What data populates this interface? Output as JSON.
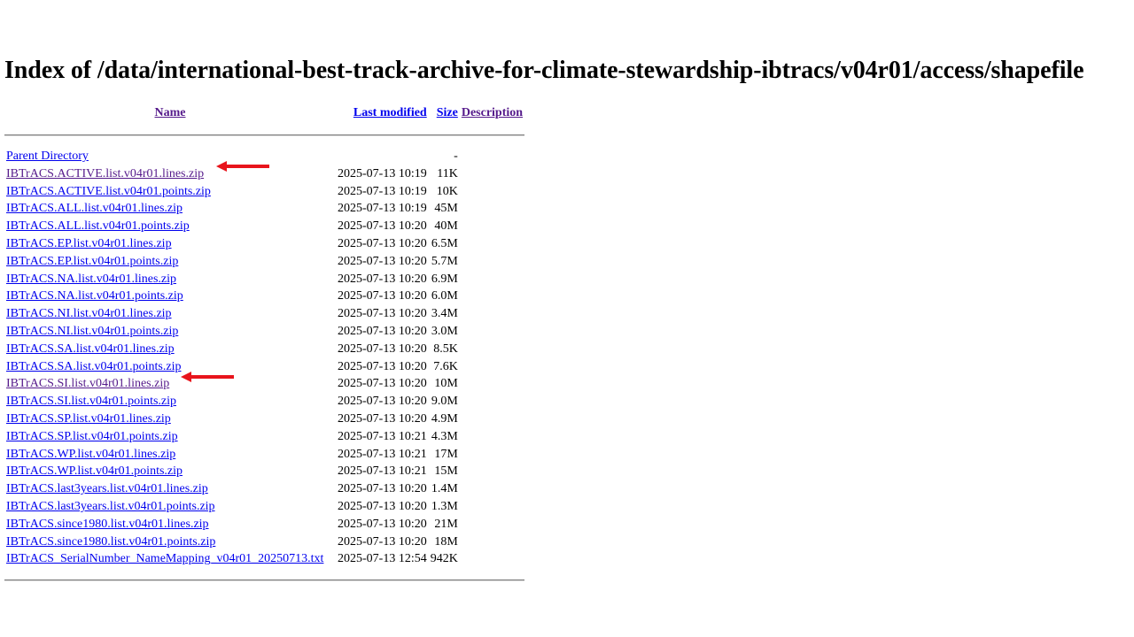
{
  "page_title": "Index of /data/international-best-track-archive-for-climate-stewardship-ibtracs/v04r01/access/shapefile",
  "columns": {
    "name": "Name",
    "last_modified": "Last modified",
    "size": "Size",
    "description": "Description"
  },
  "parent": {
    "label": "Parent Directory",
    "size": "-"
  },
  "files": [
    {
      "name": "IBTrACS.ACTIVE.list.v04r01.lines.zip",
      "modified": "2025-07-13 10:19",
      "size": "11K"
    },
    {
      "name": "IBTrACS.ACTIVE.list.v04r01.points.zip",
      "modified": "2025-07-13 10:19",
      "size": "10K"
    },
    {
      "name": "IBTrACS.ALL.list.v04r01.lines.zip",
      "modified": "2025-07-13 10:19",
      "size": "45M"
    },
    {
      "name": "IBTrACS.ALL.list.v04r01.points.zip",
      "modified": "2025-07-13 10:20",
      "size": "40M"
    },
    {
      "name": "IBTrACS.EP.list.v04r01.lines.zip",
      "modified": "2025-07-13 10:20",
      "size": "6.5M"
    },
    {
      "name": "IBTrACS.EP.list.v04r01.points.zip",
      "modified": "2025-07-13 10:20",
      "size": "5.7M"
    },
    {
      "name": "IBTrACS.NA.list.v04r01.lines.zip",
      "modified": "2025-07-13 10:20",
      "size": "6.9M"
    },
    {
      "name": "IBTrACS.NA.list.v04r01.points.zip",
      "modified": "2025-07-13 10:20",
      "size": "6.0M"
    },
    {
      "name": "IBTrACS.NI.list.v04r01.lines.zip",
      "modified": "2025-07-13 10:20",
      "size": "3.4M"
    },
    {
      "name": "IBTrACS.NI.list.v04r01.points.zip",
      "modified": "2025-07-13 10:20",
      "size": "3.0M"
    },
    {
      "name": "IBTrACS.SA.list.v04r01.lines.zip",
      "modified": "2025-07-13 10:20",
      "size": "8.5K"
    },
    {
      "name": "IBTrACS.SA.list.v04r01.points.zip",
      "modified": "2025-07-13 10:20",
      "size": "7.6K"
    },
    {
      "name": "IBTrACS.SI.list.v04r01.lines.zip",
      "modified": "2025-07-13 10:20",
      "size": "10M"
    },
    {
      "name": "IBTrACS.SI.list.v04r01.points.zip",
      "modified": "2025-07-13 10:20",
      "size": "9.0M"
    },
    {
      "name": "IBTrACS.SP.list.v04r01.lines.zip",
      "modified": "2025-07-13 10:20",
      "size": "4.9M"
    },
    {
      "name": "IBTrACS.SP.list.v04r01.points.zip",
      "modified": "2025-07-13 10:21",
      "size": "4.3M"
    },
    {
      "name": "IBTrACS.WP.list.v04r01.lines.zip",
      "modified": "2025-07-13 10:21",
      "size": "17M"
    },
    {
      "name": "IBTrACS.WP.list.v04r01.points.zip",
      "modified": "2025-07-13 10:21",
      "size": "15M"
    },
    {
      "name": "IBTrACS.last3years.list.v04r01.lines.zip",
      "modified": "2025-07-13 10:20",
      "size": "1.4M"
    },
    {
      "name": "IBTrACS.last3years.list.v04r01.points.zip",
      "modified": "2025-07-13 10:20",
      "size": "1.3M"
    },
    {
      "name": "IBTrACS.since1980.list.v04r01.lines.zip",
      "modified": "2025-07-13 10:20",
      "size": "21M"
    },
    {
      "name": "IBTrACS.since1980.list.v04r01.points.zip",
      "modified": "2025-07-13 10:20",
      "size": "18M"
    },
    {
      "name": "IBTrACS_SerialNumber_NameMapping_v04r01_20250713.txt",
      "modified": "2025-07-13 12:54",
      "size": "942K"
    }
  ],
  "colors": {
    "link": "#0000ee",
    "visited_link": "#551a8b",
    "annotation_arrow": "#e8141c"
  },
  "annotations": [
    {
      "type": "arrow",
      "points_to": "IBTrACS.ACTIVE.list.v04r01.lines.zip"
    },
    {
      "type": "arrow",
      "points_to": "IBTrACS.SI.list.v04r01.lines.zip"
    }
  ]
}
